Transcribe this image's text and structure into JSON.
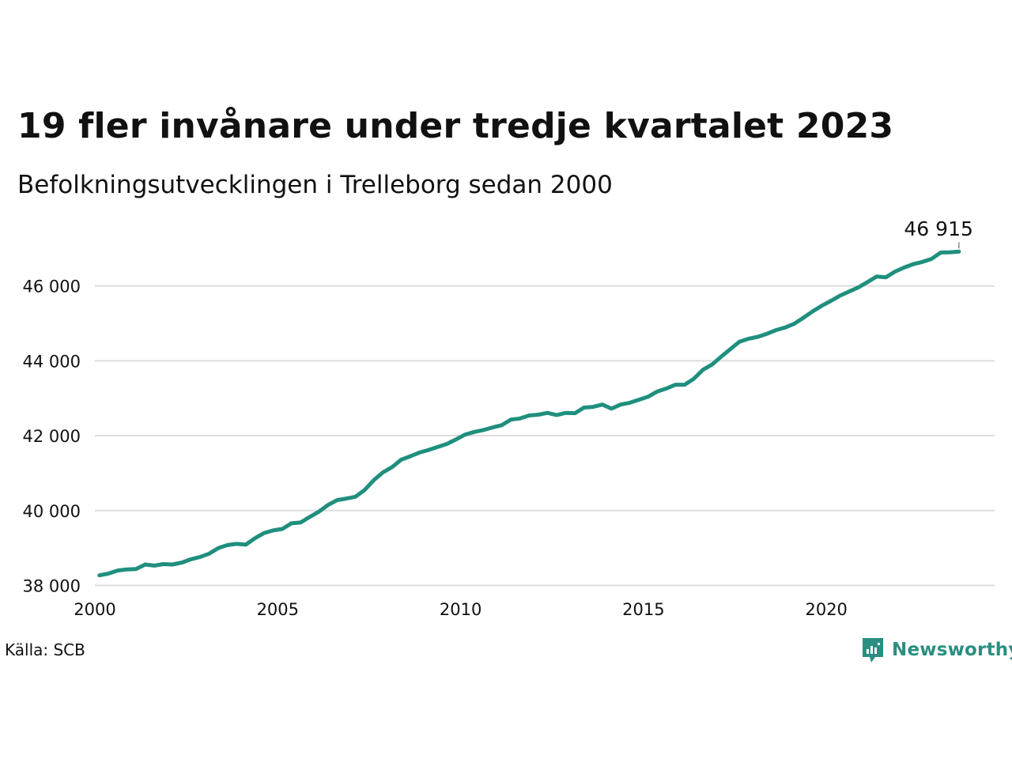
{
  "title": "19 fler invånare under tredje kvartalet 2023",
  "subtitle": "Befolkningsutvecklingen i Trelleborg sedan 2000",
  "source": "Källa: SCB",
  "brand": {
    "name": "Newsworthy",
    "icon": "newsworthy-logo-icon",
    "color": "#2a8f80"
  },
  "chart_data": {
    "type": "line",
    "title": "19 fler invånare under tredje kvartalet 2023",
    "subtitle": "Befolkningsutvecklingen i Trelleborg sedan 2000",
    "xlabel": "",
    "ylabel": "",
    "xlim": [
      2000,
      2024.6
    ],
    "ylim": [
      37800,
      47300
    ],
    "x_ticks": [
      2000,
      2005,
      2010,
      2015,
      2020
    ],
    "x_tick_labels": [
      "2000",
      "2005",
      "2010",
      "2015",
      "2020"
    ],
    "y_ticks": [
      38000,
      40000,
      42000,
      44000,
      46000
    ],
    "y_tick_labels": [
      "38 000",
      "40 000",
      "42 000",
      "44 000",
      "46 000"
    ],
    "grid": "horizontal",
    "line_color": "#1f8f7e",
    "end_label": "46 915",
    "series": [
      {
        "x": [
          2000.125,
          2000.375,
          2000.625,
          2000.875,
          2001.125,
          2001.375,
          2001.625,
          2001.875,
          2002.125,
          2002.375,
          2002.625,
          2002.875,
          2003.125,
          2003.375,
          2003.625,
          2003.875,
          2004.125,
          2004.375,
          2004.625,
          2004.875,
          2005.125,
          2005.375,
          2005.625,
          2005.875,
          2006.125,
          2006.375,
          2006.625,
          2006.875,
          2007.125,
          2007.375,
          2007.625,
          2007.875,
          2008.125,
          2008.375,
          2008.625,
          2008.875,
          2009.125,
          2009.375,
          2009.625,
          2009.875,
          2010.125,
          2010.375,
          2010.625,
          2010.875,
          2011.125,
          2011.375,
          2011.625,
          2011.875,
          2012.125,
          2012.375,
          2012.625,
          2012.875,
          2013.125,
          2013.375,
          2013.625,
          2013.875,
          2014.125,
          2014.375,
          2014.625,
          2014.875,
          2015.125,
          2015.375,
          2015.625,
          2015.875,
          2016.125,
          2016.375,
          2016.625,
          2016.875,
          2017.125,
          2017.375,
          2017.625,
          2017.875,
          2018.125,
          2018.375,
          2018.625,
          2018.875,
          2019.125,
          2019.375,
          2019.625,
          2019.875,
          2020.125,
          2020.375,
          2020.625,
          2020.875,
          2021.125,
          2021.375,
          2021.625,
          2021.875,
          2022.125,
          2022.375,
          2022.625,
          2022.875,
          2023.125,
          2023.375,
          2023.625
        ],
        "values": [
          38270,
          38320,
          38400,
          38430,
          38440,
          38560,
          38530,
          38570,
          38560,
          38610,
          38700,
          38760,
          38850,
          39000,
          39080,
          39110,
          39090,
          39260,
          39400,
          39470,
          39510,
          39660,
          39680,
          39830,
          39970,
          40150,
          40280,
          40320,
          40370,
          40550,
          40810,
          41020,
          41160,
          41360,
          41450,
          41550,
          41620,
          41700,
          41780,
          41900,
          42030,
          42100,
          42150,
          42220,
          42280,
          42430,
          42460,
          42540,
          42560,
          42610,
          42550,
          42610,
          42600,
          42750,
          42770,
          42830,
          42720,
          42830,
          42880,
          42960,
          43040,
          43180,
          43260,
          43360,
          43360,
          43520,
          43760,
          43900,
          44110,
          44310,
          44510,
          44590,
          44640,
          44720,
          44820,
          44890,
          44990,
          45150,
          45320,
          45470,
          45600,
          45740,
          45850,
          45960,
          46100,
          46250,
          46230,
          46380,
          46490,
          46580,
          46640,
          46720,
          46890,
          46896,
          46915
        ]
      }
    ]
  }
}
